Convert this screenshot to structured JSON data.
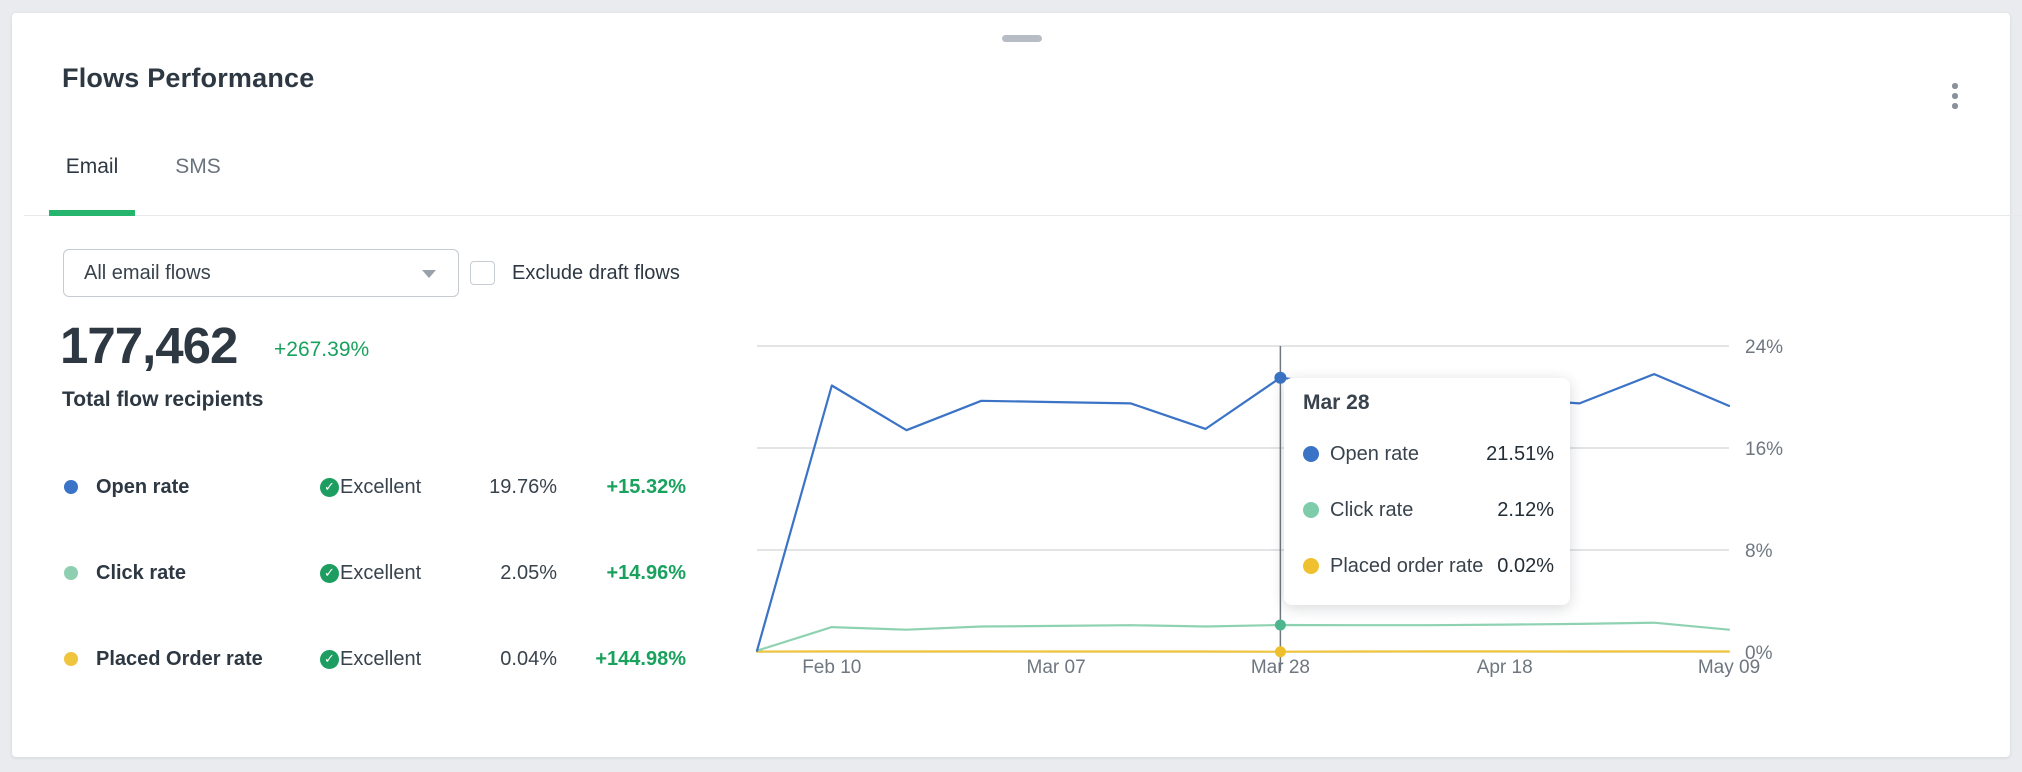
{
  "header": {
    "title": "Flows Performance"
  },
  "tabs": [
    {
      "label": "Email",
      "active": true
    },
    {
      "label": "SMS",
      "active": false
    }
  ],
  "filters": {
    "flow_select": {
      "value": "All email flows"
    },
    "exclude_draft": {
      "label": "Exclude draft flows",
      "checked": false
    }
  },
  "summary": {
    "value": "177,462",
    "delta": "+267.39%",
    "label": "Total flow recipients"
  },
  "metrics": [
    {
      "name": "Open rate",
      "color": "#3b73c6",
      "rating": "Excellent",
      "value": "19.76%",
      "delta": "+15.32%"
    },
    {
      "name": "Click rate",
      "color": "#8fcfb1",
      "rating": "Excellent",
      "value": "2.05%",
      "delta": "+14.96%"
    },
    {
      "name": "Placed Order rate",
      "color": "#f0c53e",
      "rating": "Excellent",
      "value": "0.04%",
      "delta": "+144.98%"
    }
  ],
  "icons": {
    "rating_check_glyph": "✓"
  },
  "tooltip": {
    "title": "Mar 28",
    "rows": [
      {
        "label": "Open rate",
        "color": "#3b73c6",
        "value": "21.51%"
      },
      {
        "label": "Click rate",
        "color": "#7fccaa",
        "value": "2.12%"
      },
      {
        "label": "Placed order rate",
        "color": "#f0c12e",
        "value": "0.02%"
      }
    ]
  },
  "chart_data": {
    "type": "line",
    "x_tick_labels": [
      "Feb 10",
      "Mar 07",
      "Mar 28",
      "Apr 18",
      "May 09"
    ],
    "x_tick_indices": [
      1,
      4,
      7,
      10,
      13
    ],
    "y_ticks": [
      "24%",
      "16%",
      "8%",
      "0%"
    ],
    "y_tick_values": [
      24,
      16,
      8,
      0
    ],
    "ylim": [
      0,
      24
    ],
    "grid": "horizontal",
    "legend_position": "none",
    "highlight_index": 7,
    "highlight_label": "Mar 28",
    "crosshair_color": "#70777e",
    "gridline_color": "#d8dbde",
    "series": [
      {
        "name": "Open rate",
        "color": "#3b73c6",
        "marker_color": "#3b73c6",
        "values": [
          0.1,
          20.9,
          17.4,
          19.7,
          19.6,
          19.5,
          17.5,
          21.51,
          20.8,
          20.2,
          19.9,
          19.5,
          21.8,
          19.3
        ]
      },
      {
        "name": "Click rate",
        "color": "#8fd2b2",
        "marker_color": "#4eb68e",
        "values": [
          0.1,
          1.95,
          1.75,
          2.0,
          2.05,
          2.1,
          2.0,
          2.12,
          2.1,
          2.1,
          2.15,
          2.2,
          2.3,
          1.75
        ]
      },
      {
        "name": "Placed order rate",
        "color": "#f0c53e",
        "marker_color": "#eec02e",
        "values": [
          0.03,
          0.05,
          0.04,
          0.05,
          0.04,
          0.04,
          0.04,
          0.02,
          0.04,
          0.05,
          0.05,
          0.04,
          0.05,
          0.04
        ]
      }
    ]
  }
}
